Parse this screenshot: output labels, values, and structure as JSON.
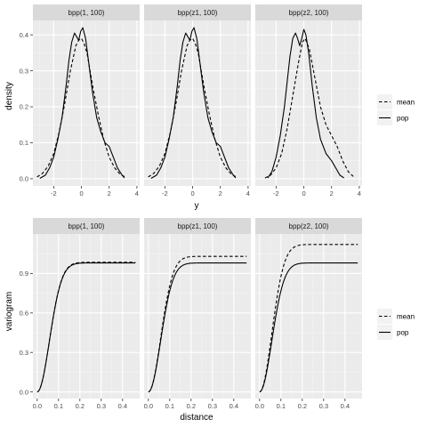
{
  "chart_data": [
    {
      "type": "line",
      "panels": [
        "bpp(1, 100)",
        "bpp(z1, 100)",
        "bpp(z2, 100)"
      ],
      "xlabel": "y",
      "ylabel": "density",
      "xlim": [
        -3.5,
        4.2
      ],
      "ylim": [
        -0.02,
        0.44
      ],
      "xticks": [
        -2,
        0,
        2,
        4
      ],
      "yticks": [
        0.0,
        0.1,
        0.2,
        0.3,
        0.4
      ],
      "ytick_labels": [
        "0.0",
        "0.1",
        "0.2",
        "0.3",
        "0.4"
      ],
      "legend": {
        "position": "right",
        "entries": [
          {
            "label": "mean",
            "linetype": "dashed"
          },
          {
            "label": "pop",
            "linetype": "solid"
          }
        ]
      },
      "series": [
        {
          "panel": "bpp(1, 100)",
          "name": "mean",
          "linetype": "dashed",
          "x": [
            -3.2,
            -2.8,
            -2.4,
            -2.0,
            -1.6,
            -1.2,
            -0.8,
            -0.4,
            -0.2,
            0.0,
            0.2,
            0.4,
            0.8,
            1.2,
            1.6,
            2.0,
            2.4,
            2.8,
            3.2
          ],
          "y": [
            0.005,
            0.015,
            0.035,
            0.07,
            0.13,
            0.21,
            0.3,
            0.37,
            0.385,
            0.39,
            0.375,
            0.35,
            0.26,
            0.18,
            0.11,
            0.06,
            0.03,
            0.012,
            0.004
          ]
        },
        {
          "panel": "bpp(1, 100)",
          "name": "pop",
          "linetype": "solid",
          "x": [
            -3.0,
            -2.6,
            -2.3,
            -2.0,
            -1.7,
            -1.4,
            -1.1,
            -0.9,
            -0.7,
            -0.5,
            -0.35,
            -0.2,
            -0.05,
            0.1,
            0.3,
            0.5,
            0.8,
            1.1,
            1.4,
            1.7,
            2.0,
            2.3,
            2.6,
            2.9,
            3.1
          ],
          "y": [
            0.001,
            0.01,
            0.03,
            0.06,
            0.11,
            0.17,
            0.26,
            0.33,
            0.38,
            0.405,
            0.395,
            0.385,
            0.41,
            0.42,
            0.39,
            0.33,
            0.24,
            0.17,
            0.13,
            0.1,
            0.09,
            0.06,
            0.03,
            0.012,
            0.002
          ]
        },
        {
          "panel": "bpp(z1, 100)",
          "name": "mean",
          "linetype": "dashed",
          "x": [
            -3.2,
            -2.8,
            -2.4,
            -2.0,
            -1.6,
            -1.2,
            -0.8,
            -0.4,
            -0.2,
            0.0,
            0.2,
            0.4,
            0.8,
            1.2,
            1.6,
            2.0,
            2.4,
            2.8,
            3.2
          ],
          "y": [
            0.005,
            0.015,
            0.035,
            0.07,
            0.13,
            0.21,
            0.3,
            0.37,
            0.385,
            0.39,
            0.375,
            0.35,
            0.26,
            0.18,
            0.11,
            0.06,
            0.03,
            0.012,
            0.004
          ]
        },
        {
          "panel": "bpp(z1, 100)",
          "name": "pop",
          "linetype": "solid",
          "x": [
            -3.0,
            -2.6,
            -2.3,
            -2.0,
            -1.7,
            -1.4,
            -1.1,
            -0.9,
            -0.7,
            -0.5,
            -0.35,
            -0.2,
            -0.05,
            0.1,
            0.3,
            0.5,
            0.8,
            1.1,
            1.4,
            1.7,
            2.0,
            2.3,
            2.6,
            2.9,
            3.1
          ],
          "y": [
            0.001,
            0.01,
            0.03,
            0.06,
            0.11,
            0.17,
            0.26,
            0.33,
            0.38,
            0.405,
            0.395,
            0.385,
            0.41,
            0.42,
            0.39,
            0.33,
            0.24,
            0.17,
            0.13,
            0.1,
            0.09,
            0.06,
            0.03,
            0.012,
            0.002
          ]
        },
        {
          "panel": "bpp(z2, 100)",
          "name": "mean",
          "linetype": "dashed",
          "x": [
            -2.8,
            -2.4,
            -2.0,
            -1.6,
            -1.2,
            -0.8,
            -0.4,
            -0.1,
            0.1,
            0.4,
            0.8,
            1.2,
            1.6,
            2.0,
            2.4,
            2.8,
            3.2,
            3.6
          ],
          "y": [
            0.002,
            0.01,
            0.03,
            0.07,
            0.14,
            0.23,
            0.32,
            0.38,
            0.39,
            0.36,
            0.28,
            0.2,
            0.15,
            0.12,
            0.09,
            0.05,
            0.02,
            0.005
          ]
        },
        {
          "panel": "bpp(z2, 100)",
          "name": "pop",
          "linetype": "solid",
          "x": [
            -2.6,
            -2.3,
            -2.0,
            -1.7,
            -1.4,
            -1.2,
            -1.0,
            -0.8,
            -0.6,
            -0.45,
            -0.3,
            -0.15,
            0.0,
            0.15,
            0.35,
            0.6,
            0.9,
            1.2,
            1.6,
            2.0,
            2.3,
            2.6,
            2.9
          ],
          "y": [
            0.002,
            0.02,
            0.06,
            0.12,
            0.2,
            0.27,
            0.34,
            0.39,
            0.405,
            0.39,
            0.37,
            0.39,
            0.415,
            0.4,
            0.35,
            0.26,
            0.17,
            0.11,
            0.07,
            0.05,
            0.03,
            0.01,
            0.002
          ]
        }
      ]
    },
    {
      "type": "line",
      "panels": [
        "bpp(1, 100)",
        "bpp(z1, 100)",
        "bpp(z2, 100)"
      ],
      "xlabel": "distance",
      "ylabel": "variogram",
      "xlim": [
        -0.02,
        0.48
      ],
      "ylim": [
        -0.05,
        1.2
      ],
      "xticks": [
        0.0,
        0.1,
        0.2,
        0.3,
        0.4
      ],
      "xtick_labels": [
        "0.0",
        "0.1",
        "0.2",
        "0.3",
        "0.4"
      ],
      "yticks": [
        0.0,
        0.3,
        0.6,
        0.9
      ],
      "ytick_labels": [
        "0.0",
        "0.3",
        "0.6",
        "0.9"
      ],
      "legend": {
        "position": "right",
        "entries": [
          {
            "label": "mean",
            "linetype": "dashed"
          },
          {
            "label": "pop",
            "linetype": "solid"
          }
        ]
      },
      "series": [
        {
          "panel": "bpp(1, 100)",
          "name": "mean",
          "linetype": "dashed",
          "model": "gaussian",
          "nugget": 0,
          "sill": 0.985,
          "range": 0.14,
          "x_max": 0.46
        },
        {
          "panel": "bpp(1, 100)",
          "name": "pop",
          "linetype": "solid",
          "model": "gaussian",
          "nugget": 0,
          "sill": 0.98,
          "range": 0.14,
          "x_max": 0.46
        },
        {
          "panel": "bpp(z1, 100)",
          "name": "mean",
          "linetype": "dashed",
          "model": "gaussian",
          "nugget": 0,
          "sill": 1.03,
          "range": 0.14,
          "x_max": 0.46
        },
        {
          "panel": "bpp(z1, 100)",
          "name": "pop",
          "linetype": "solid",
          "model": "gaussian",
          "nugget": 0,
          "sill": 0.98,
          "range": 0.14,
          "x_max": 0.46
        },
        {
          "panel": "bpp(z2, 100)",
          "name": "mean",
          "linetype": "dashed",
          "model": "gaussian",
          "nugget": 0,
          "sill": 1.12,
          "range": 0.14,
          "x_max": 0.46
        },
        {
          "panel": "bpp(z2, 100)",
          "name": "pop",
          "linetype": "solid",
          "model": "gaussian",
          "nugget": 0,
          "sill": 0.98,
          "range": 0.14,
          "x_max": 0.46
        }
      ]
    }
  ]
}
